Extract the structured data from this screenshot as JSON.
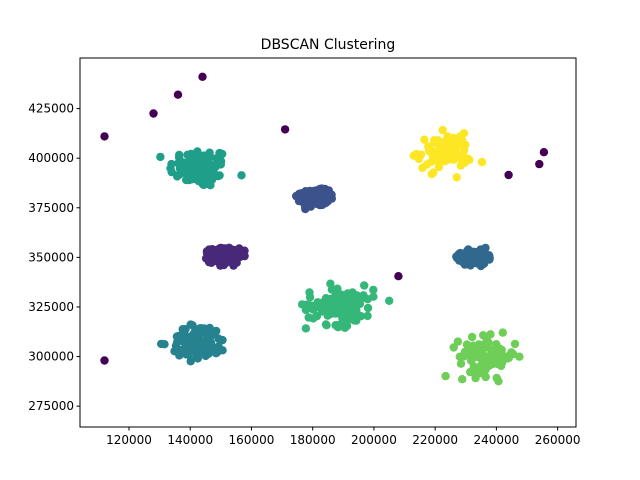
{
  "chart_data": {
    "type": "scatter",
    "title": "DBSCAN Clustering",
    "xlabel": "",
    "ylabel": "",
    "xlim": [
      104000,
      266000
    ],
    "ylim": [
      264500,
      450500
    ],
    "xticks": [
      120000,
      140000,
      160000,
      180000,
      200000,
      220000,
      240000,
      260000
    ],
    "yticks": [
      275000,
      300000,
      325000,
      350000,
      375000,
      400000,
      425000
    ],
    "xtick_labels": [
      "120000",
      "140000",
      "160000",
      "180000",
      "200000",
      "220000",
      "240000",
      "260000"
    ],
    "ytick_labels": [
      "275000",
      "300000",
      "325000",
      "350000",
      "375000",
      "400000",
      "425000"
    ],
    "grid": false,
    "legend": "none",
    "colors": {
      "noise": "#440154",
      "cluster_0": "#1f9e89",
      "cluster_1": "#3b528b",
      "cluster_2": "#fde725",
      "cluster_3": "#482878",
      "cluster_4": "#31688e",
      "cluster_5": "#26828e",
      "cluster_6": "#35b779",
      "cluster_7": "#6ece58"
    },
    "clusters": [
      {
        "label": "cluster_0",
        "center": [
          143000,
          395000
        ],
        "spread": [
          9000,
          9000
        ],
        "count": 90
      },
      {
        "label": "cluster_1",
        "center": [
          181000,
          380000
        ],
        "spread": [
          4000,
          3500
        ],
        "count": 260
      },
      {
        "label": "cluster_2",
        "center": [
          223000,
          403000
        ],
        "spread": [
          8000,
          8000
        ],
        "count": 90
      },
      {
        "label": "cluster_3",
        "center": [
          151000,
          351000
        ],
        "spread": [
          4200,
          3200
        ],
        "count": 320
      },
      {
        "label": "cluster_4",
        "center": [
          233000,
          350000
        ],
        "spread": [
          3800,
          3000
        ],
        "count": 280
      },
      {
        "label": "cluster_5",
        "center": [
          143000,
          307000
        ],
        "spread": [
          8500,
          8000
        ],
        "count": 100
      },
      {
        "label": "cluster_6",
        "center": [
          189000,
          326000
        ],
        "spread": [
          10000,
          9000
        ],
        "count": 110
      },
      {
        "label": "cluster_7",
        "center": [
          237000,
          300000
        ],
        "spread": [
          8500,
          8500
        ],
        "count": 100
      }
    ],
    "noise_points": [
      [
        112000,
        411000
      ],
      [
        112000,
        298000
      ],
      [
        128000,
        422500
      ],
      [
        136000,
        432000
      ],
      [
        144000,
        441000
      ],
      [
        171000,
        414500
      ],
      [
        208000,
        340500
      ],
      [
        244000,
        391500
      ],
      [
        254000,
        397000
      ],
      [
        255500,
        403000
      ]
    ]
  }
}
